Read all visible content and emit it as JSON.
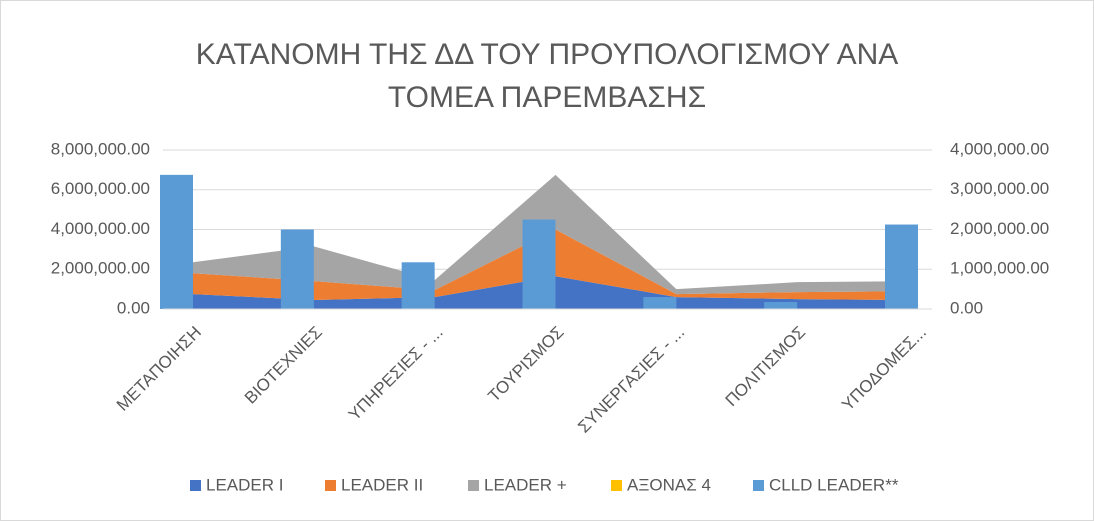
{
  "chart_data": {
    "type": "combo",
    "title": [
      "ΚΑΤΑΝΟΜΗ ΤΗΣ ΔΔ ΤΟΥ ΠΡΟΥΠΟΛΟΓΙΣΜΟΥ ΑΝΑ",
      "ΤΟΜΕΑ ΠΑΡΕΜΒΑΣΗΣ"
    ],
    "categories": [
      "ΜΕΤΑΠΟΙΗΣΗ",
      "ΒΙΟΤΕΧΝΙΕΣ",
      "ΥΠΗΡΕΣΙΕΣ - ...",
      "ΤΟΥΡΙΣΜΟΣ",
      "ΣΥΝΕΡΓΑΣΙΕΣ - ...",
      "ΠΟΛΙΤΙΣΜΟΣ",
      "ΥΠΟΔΟΜΕΣ..."
    ],
    "series": [
      {
        "name": "LEADER I",
        "color": "#4472c4",
        "type": "area",
        "values": [
          750000,
          450000,
          600000,
          1650000,
          600000,
          500000,
          450000
        ]
      },
      {
        "name": "LEADER II",
        "color": "#ed7d31",
        "type": "area",
        "values": [
          1050000,
          950000,
          350000,
          2350000,
          150000,
          350000,
          450000
        ]
      },
      {
        "name": "LEADER +",
        "color": "#a5a5a5",
        "type": "area",
        "values": [
          550000,
          1750000,
          500000,
          2750000,
          250000,
          500000,
          500000
        ]
      },
      {
        "name": "ΑΞΟΝΑΣ 4",
        "color": "#ffc000",
        "type": "bar",
        "axis": "y2",
        "values": [
          0,
          0,
          0,
          0,
          0,
          0,
          0
        ]
      },
      {
        "name": "CLLD LEADER**",
        "color": "#5b9bd5",
        "type": "bar",
        "axis": "y2",
        "values": [
          3375000,
          2000000,
          1175000,
          2250000,
          300000,
          175000,
          2125000
        ]
      }
    ],
    "ylim": [
      0,
      8000000
    ],
    "yticks": [
      {
        "value": 0,
        "label": "0.00"
      },
      {
        "value": 2000000,
        "label": "2,000,000.00"
      },
      {
        "value": 4000000,
        "label": "4,000,000.00"
      },
      {
        "value": 6000000,
        "label": "6,000,000.00"
      },
      {
        "value": 8000000,
        "label": "8,000,000.00"
      }
    ],
    "y2lim": [
      0,
      4000000
    ],
    "y2ticks": [
      {
        "value": 0,
        "label": "0.00"
      },
      {
        "value": 1000000,
        "label": "1,000,000.00"
      },
      {
        "value": 2000000,
        "label": "2,000,000.00"
      },
      {
        "value": 3000000,
        "label": "3,000,000.00"
      },
      {
        "value": 4000000,
        "label": "4,000,000.00"
      }
    ],
    "grid": true,
    "legend": "bottom"
  }
}
